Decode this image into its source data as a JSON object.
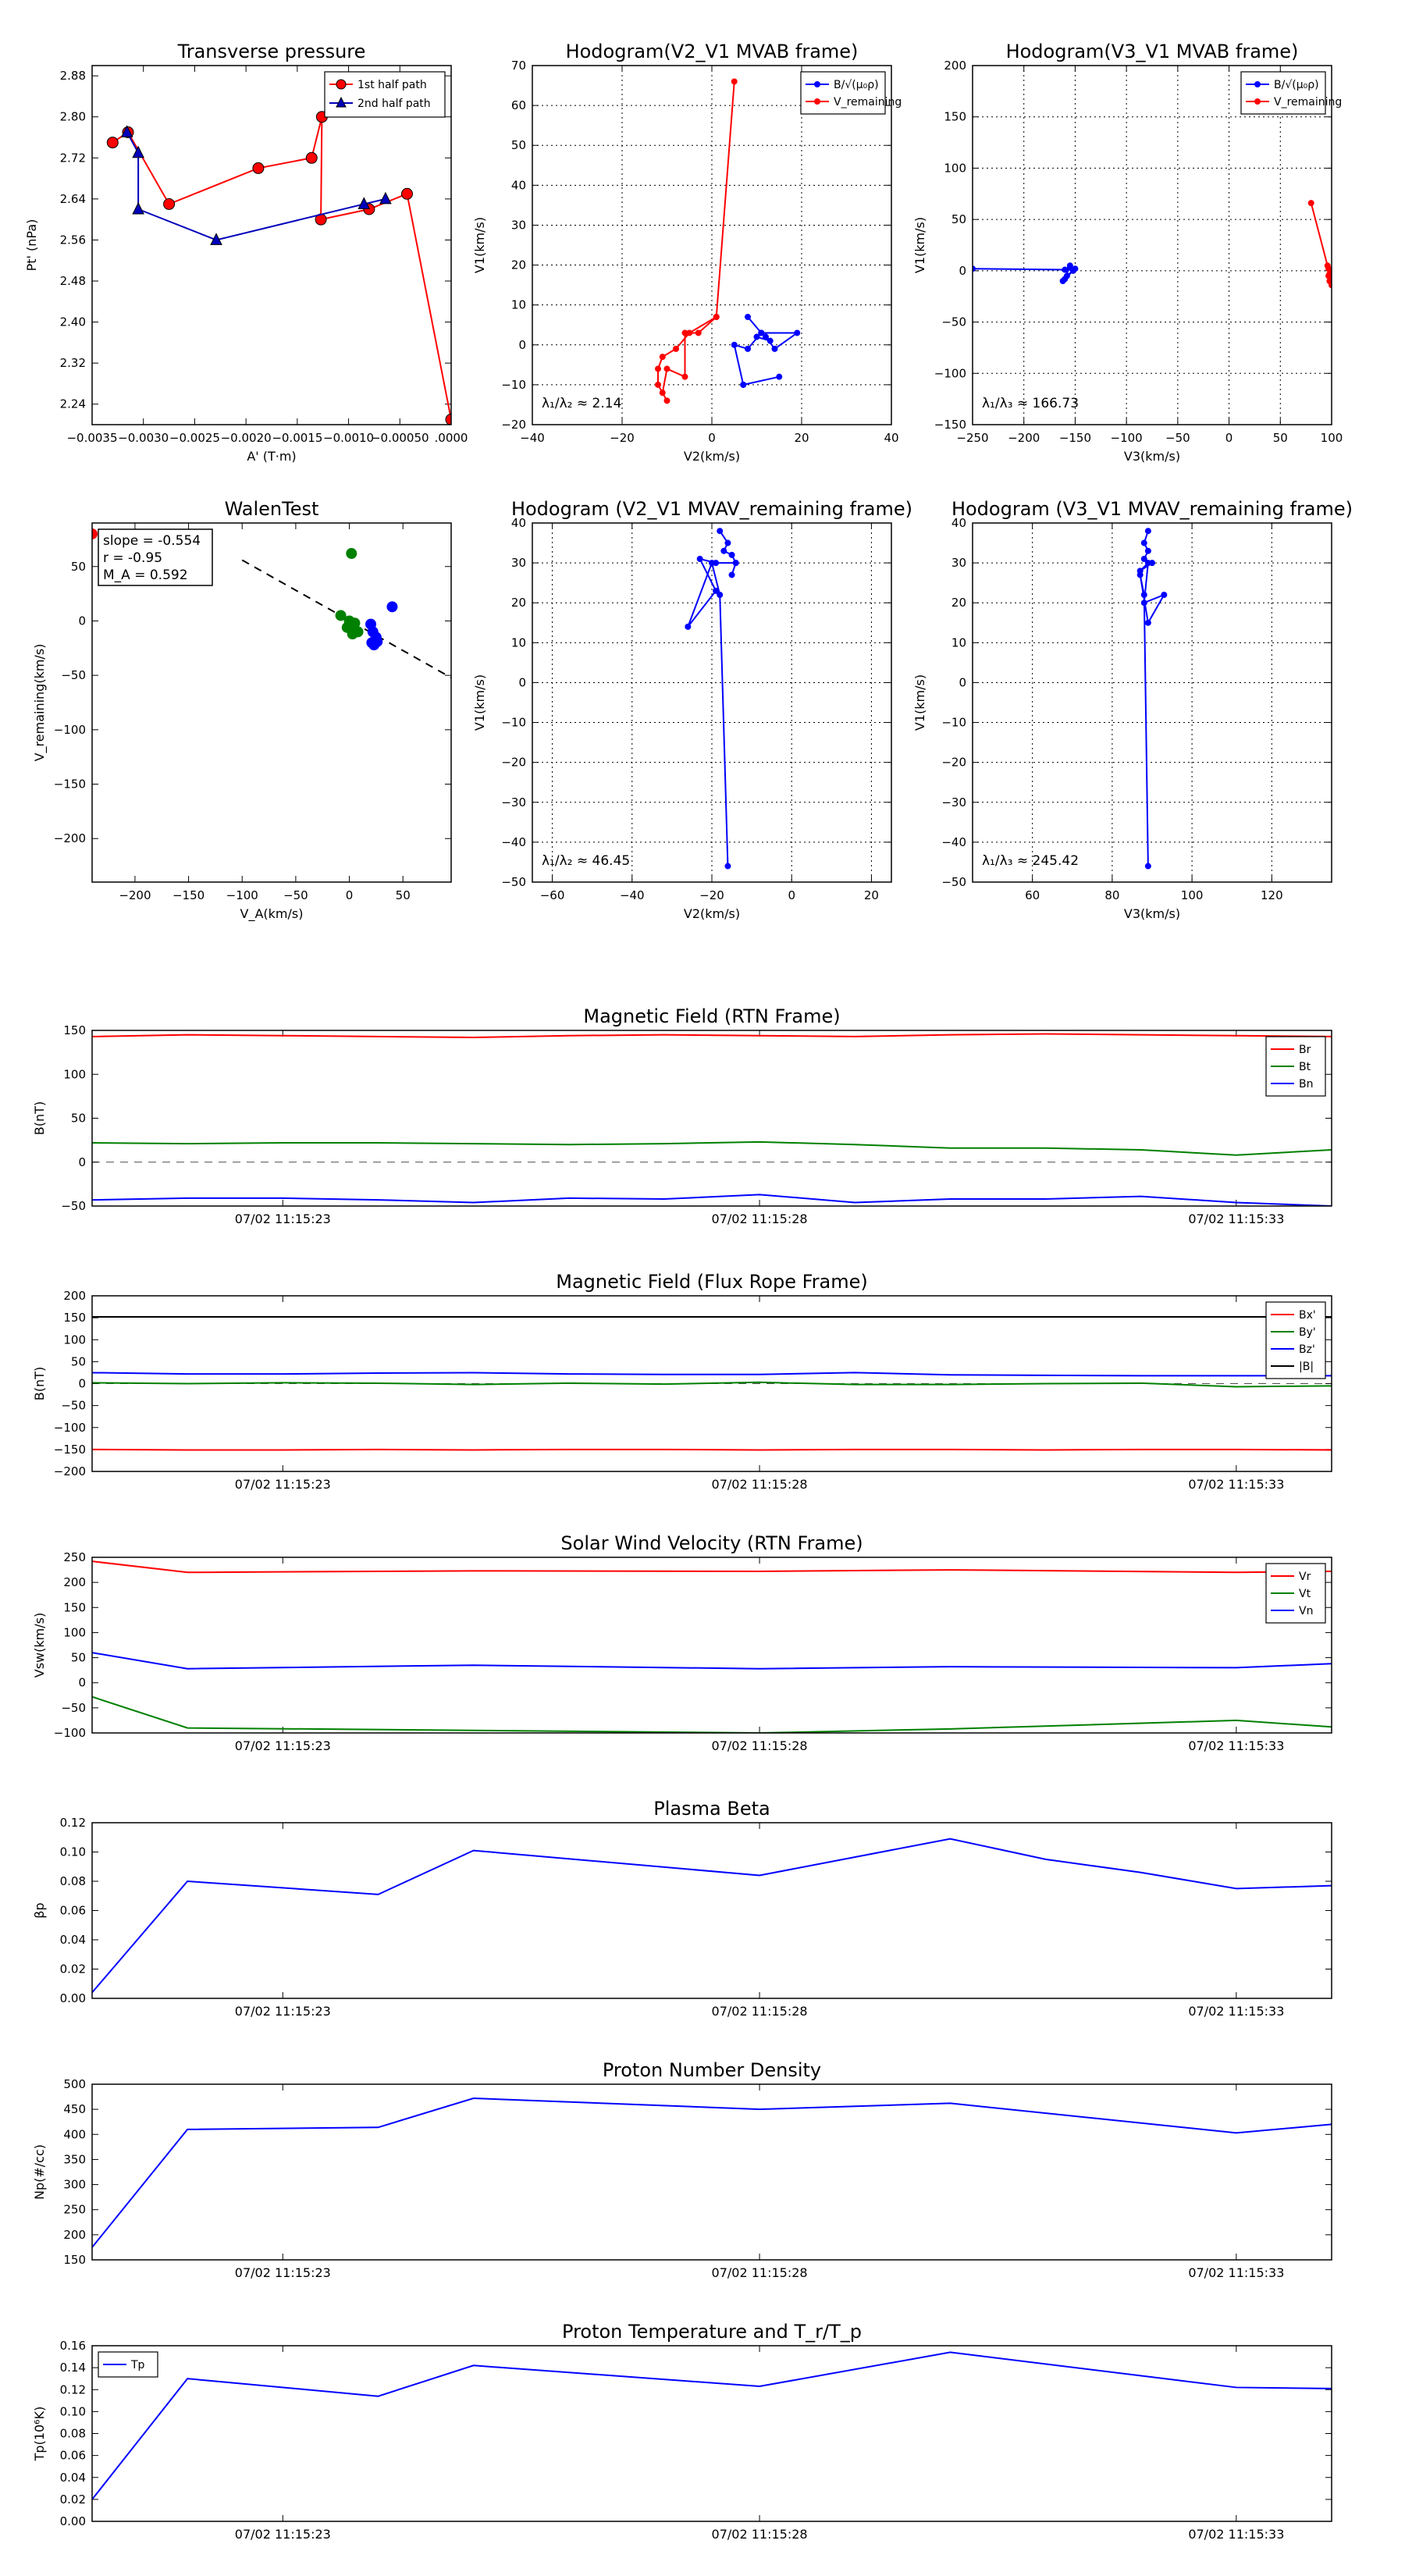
{
  "chart_data": [
    {
      "id": "tp",
      "type": "scatter",
      "title": "Transverse pressure",
      "xlabel": "A' (T·m)",
      "ylabel": "Pt' (nPa)",
      "xlim": [
        -0.0035,
        0.0
      ],
      "ylim": [
        2.2,
        2.9
      ],
      "xticks": [
        -0.0035,
        -0.003,
        -0.0025,
        -0.002,
        -0.0015,
        -0.001,
        -0.0005,
        0.0
      ],
      "xticklabels": [
        "−0.0035",
        "−0.0030",
        "−0.0025",
        "−0.0020",
        "−0.0015",
        "−0.0010",
        "−0.00050",
        ".0000"
      ],
      "yticks": [
        2.24,
        2.32,
        2.4,
        2.48,
        2.56,
        2.64,
        2.72,
        2.8,
        2.88
      ],
      "yticklabels": [
        "2.24",
        "2.32",
        "2.40",
        "2.48",
        "2.56",
        "2.64",
        "2.72",
        "2.80",
        "2.88"
      ],
      "legend": [
        "1st half path",
        "2nd half path"
      ],
      "series": [
        {
          "name": "1st half path",
          "color": "#ff0000",
          "marker": "circle",
          "x": [
            -0.0033,
            -0.00315,
            -0.00275,
            -0.00188,
            -0.00136,
            -0.00126,
            -0.00127,
            -0.0008,
            -0.00043,
            0.0
          ],
          "y": [
            2.75,
            2.77,
            2.63,
            2.7,
            2.72,
            2.8,
            2.6,
            2.62,
            2.65,
            2.21
          ]
        },
        {
          "name": "2nd half path",
          "color": "#0000bb",
          "marker": "triangle",
          "x": [
            -0.00316,
            -0.00305,
            -0.00305,
            -0.00229,
            -0.00085,
            -0.00064
          ],
          "y": [
            2.77,
            2.73,
            2.62,
            2.56,
            2.63,
            2.64
          ]
        }
      ]
    },
    {
      "id": "hodo1",
      "type": "line",
      "title": "Hodogram(V2_V1 MVAB frame)",
      "xlabel": "V2(km/s)",
      "ylabel": "V1(km/s)",
      "xlim": [
        -40,
        40
      ],
      "ylim": [
        -20,
        70
      ],
      "xticks": [
        -40,
        -20,
        0,
        20,
        40
      ],
      "yticks": [
        -20,
        -10,
        0,
        10,
        20,
        30,
        40,
        50,
        60,
        70
      ],
      "legend": [
        "B/√(μ₀ρ)",
        "V_remaining"
      ],
      "annotation": "λ₁/λ₂ ≈ 2.14",
      "series": [
        {
          "name": "B/√(μ₀ρ)",
          "color": "#0000ff",
          "x": [
            8,
            11,
            10,
            13,
            12,
            14,
            19,
            11,
            8,
            5,
            7,
            15,
            7
          ],
          "y": [
            7,
            3,
            2,
            1,
            2,
            -1,
            3,
            3,
            -1,
            0,
            -10,
            -8,
            -10
          ]
        },
        {
          "name": "V_remaining",
          "color": "#ff0000",
          "x": [
            5,
            1,
            -5,
            -8,
            -11,
            -12,
            -12,
            -10,
            -11,
            -10,
            -6,
            -6,
            -3,
            1
          ],
          "y": [
            66,
            7,
            3,
            -1,
            -3,
            -6,
            -10,
            -14,
            -12,
            -6,
            -8,
            3,
            3,
            7
          ]
        }
      ]
    },
    {
      "id": "hodo2",
      "type": "line",
      "title": "Hodogram(V3_V1 MVAB frame)",
      "xlabel": "V3(km/s)",
      "ylabel": "V1(km/s)",
      "xlim": [
        -250,
        100
      ],
      "ylim": [
        -150,
        200
      ],
      "xticks": [
        -250,
        -200,
        -150,
        -100,
        -50,
        0,
        50,
        100
      ],
      "yticks": [
        -150,
        -100,
        -50,
        0,
        50,
        100,
        150,
        200
      ],
      "legend": [
        "B/√(μ₀ρ)",
        "V_remaining"
      ],
      "annotation": "λ₁/λ₃ ≈ 166.73",
      "series": [
        {
          "name": "B/√(μ₀ρ)",
          "color": "#0000ff",
          "x": [
            -250,
            -160,
            -155,
            -152,
            -158,
            -150,
            -162,
            -160,
            -155
          ],
          "y": [
            2,
            1,
            3,
            0,
            -5,
            2,
            -10,
            -8,
            5
          ]
        },
        {
          "name": "V_remaining",
          "color": "#ff0000",
          "x": [
            80,
            96,
            98,
            97,
            99,
            98,
            100,
            99,
            97
          ],
          "y": [
            66,
            5,
            -3,
            2,
            -8,
            -10,
            -14,
            0,
            -5
          ]
        }
      ]
    },
    {
      "id": "walen",
      "type": "scatter",
      "title": "WalenTest",
      "xlabel": "V_A(km/s)",
      "ylabel": "V_remaining(km/s)",
      "xlim": [
        -240,
        95
      ],
      "ylim": [
        -240,
        90
      ],
      "xticks": [
        -200,
        -150,
        -100,
        -50,
        0,
        50
      ],
      "yticks": [
        -200,
        -150,
        -100,
        -50,
        0,
        50
      ],
      "textbox": [
        "slope = -0.554",
        "r = -0.95",
        "M_A = 0.592"
      ],
      "fit": {
        "slope": -0.554,
        "intercept": 0.5
      },
      "series": [
        {
          "name": "early",
          "color": "#ff0000",
          "x": [
            -240,
            -160,
            -150,
            -155
          ],
          "y": [
            80,
            95,
            95,
            95
          ]
        },
        {
          "name": "middle",
          "color": "#008000",
          "x": [
            2,
            -8,
            0,
            5,
            -2,
            4,
            8,
            0,
            3
          ],
          "y": [
            62,
            5,
            0,
            -2,
            -6,
            -8,
            -10,
            -5,
            -12
          ]
        },
        {
          "name": "late",
          "color": "#0000ff",
          "x": [
            40,
            20,
            22,
            25,
            24,
            21,
            23,
            26
          ],
          "y": [
            13,
            -3,
            -10,
            -15,
            -18,
            -20,
            -22,
            -19
          ]
        }
      ]
    },
    {
      "id": "hodo3",
      "type": "line",
      "title": "Hodogram (V2_V1 MVAV_remaining frame)",
      "xlabel": "V2(km/s)",
      "ylabel": "V1(km/s)",
      "xlim": [
        -65,
        25
      ],
      "ylim": [
        -50,
        40
      ],
      "xticks": [
        -60,
        -40,
        -20,
        0,
        20
      ],
      "yticks": [
        -50,
        -40,
        -30,
        -20,
        -10,
        0,
        10,
        20,
        30,
        40
      ],
      "annotation": "λ₁/λ₂ ≈ 46.45",
      "series": [
        {
          "name": "V",
          "color": "#0000ff",
          "x": [
            -18,
            -16,
            -17,
            -15,
            -14,
            -15,
            -14,
            -19,
            -23,
            -19,
            -26,
            -20,
            -18,
            -16
          ],
          "y": [
            38,
            35,
            33,
            32,
            30,
            27,
            30,
            30,
            31,
            23,
            14,
            30,
            22,
            -46
          ]
        }
      ]
    },
    {
      "id": "hodo4",
      "type": "line",
      "title": "Hodogram (V3_V1 MVAV_remaining frame)",
      "xlabel": "V3(km/s)",
      "ylabel": "V1(km/s)",
      "xlim": [
        45,
        135
      ],
      "ylim": [
        -50,
        40
      ],
      "xticks": [
        60,
        80,
        100,
        120
      ],
      "yticks": [
        -50,
        -40,
        -30,
        -20,
        -10,
        0,
        10,
        20,
        30,
        40
      ],
      "annotation": "λ₁/λ₃ ≈ 245.42",
      "series": [
        {
          "name": "V",
          "color": "#0000ff",
          "x": [
            89,
            88,
            89,
            88,
            90,
            87,
            89,
            88,
            93,
            89,
            87,
            88,
            89
          ],
          "y": [
            38,
            35,
            33,
            31,
            30,
            28,
            30,
            20,
            22,
            15,
            27,
            22,
            -46
          ]
        }
      ]
    },
    {
      "id": "mfrtn",
      "type": "line",
      "title": "Magnetic Field (RTN Frame)",
      "ylabel": "B(nT)",
      "xlim": [
        0,
        13
      ],
      "ylim": [
        -50,
        150
      ],
      "yticks": [
        -50,
        0,
        50,
        100,
        150
      ],
      "xticks": [
        2,
        7,
        12
      ],
      "xticklabels": [
        "07/02 11:15:23",
        "07/02 11:15:28",
        "07/02 11:15:33"
      ],
      "legend": [
        "Br",
        "Bt",
        "Bn"
      ],
      "zeroline": true,
      "x": [
        0,
        1,
        2,
        3,
        4,
        5,
        6,
        7,
        8,
        9,
        10,
        11,
        12,
        13
      ],
      "series": [
        {
          "name": "Br",
          "color": "#ff0000",
          "values": [
            143,
            145,
            144,
            143,
            142,
            144,
            145,
            144,
            143,
            145,
            146,
            145,
            144,
            143
          ]
        },
        {
          "name": "Bt",
          "color": "#008000",
          "values": [
            22,
            21,
            22,
            22,
            21,
            20,
            21,
            23,
            20,
            16,
            16,
            14,
            8,
            14
          ]
        },
        {
          "name": "Bn",
          "color": "#0000ff",
          "values": [
            -43,
            -41,
            -41,
            -43,
            -46,
            -41,
            -42,
            -37,
            -46,
            -42,
            -42,
            -39,
            -46,
            -50
          ]
        }
      ]
    },
    {
      "id": "mffr",
      "type": "line",
      "title": "Magnetic Field (Flux Rope Frame)",
      "ylabel": "B(nT)",
      "xlim": [
        0,
        13
      ],
      "ylim": [
        -200,
        200
      ],
      "yticks": [
        -200,
        -150,
        -100,
        -50,
        0,
        50,
        100,
        150,
        200
      ],
      "xticks": [
        2,
        7,
        12
      ],
      "xticklabels": [
        "07/02 11:15:23",
        "07/02 11:15:28",
        "07/02 11:15:33"
      ],
      "legend": [
        "Bx'",
        "By'",
        "Bz'",
        "|B|"
      ],
      "zeroline": true,
      "x": [
        0,
        1,
        2,
        3,
        4,
        5,
        6,
        7,
        8,
        9,
        10,
        11,
        12,
        13
      ],
      "series": [
        {
          "name": "Bx'",
          "color": "#ff0000",
          "values": [
            -150,
            -151,
            -151,
            -150,
            -151,
            -150,
            -150,
            -151,
            -150,
            -150,
            -151,
            -150,
            -150,
            -151
          ]
        },
        {
          "name": "By'",
          "color": "#008000",
          "values": [
            2,
            0,
            2,
            1,
            -2,
            1,
            -1,
            3,
            -2,
            -2,
            0,
            1,
            -7,
            -5
          ]
        },
        {
          "name": "Bz'",
          "color": "#0000ff",
          "values": [
            25,
            22,
            22,
            24,
            25,
            22,
            21,
            21,
            25,
            20,
            19,
            18,
            18,
            18
          ]
        },
        {
          "name": "|B|",
          "color": "#000000",
          "values": [
            152,
            152,
            152,
            152,
            152,
            152,
            152,
            152,
            152,
            152,
            152,
            152,
            152,
            152
          ]
        }
      ]
    },
    {
      "id": "sw",
      "type": "line",
      "title": "Solar Wind Velocity (RTN Frame)",
      "ylabel": "Vsw(km/s)",
      "xlim": [
        0,
        13
      ],
      "ylim": [
        -100,
        250
      ],
      "yticks": [
        -100,
        -50,
        0,
        50,
        100,
        150,
        200,
        250
      ],
      "xticks": [
        2,
        7,
        12
      ],
      "xticklabels": [
        "07/02 11:15:23",
        "07/02 11:15:28",
        "07/02 11:15:33"
      ],
      "legend": [
        "Vr",
        "Vt",
        "Vn"
      ],
      "x": [
        0,
        1,
        4,
        7,
        9,
        12,
        13
      ],
      "series": [
        {
          "name": "Vr",
          "color": "#ff0000",
          "values": [
            242,
            220,
            223,
            222,
            225,
            220,
            222
          ]
        },
        {
          "name": "Vt",
          "color": "#008000",
          "values": [
            -28,
            -90,
            -95,
            -100,
            -92,
            -75,
            -88
          ]
        },
        {
          "name": "Vn",
          "color": "#0000ff",
          "values": [
            60,
            28,
            35,
            28,
            32,
            30,
            38
          ]
        }
      ]
    },
    {
      "id": "beta",
      "type": "line",
      "title": "Plasma Beta",
      "ylabel": "βp",
      "xlim": [
        0,
        13
      ],
      "ylim": [
        0,
        0.12
      ],
      "yticks": [
        0,
        0.02,
        0.04,
        0.06,
        0.08,
        0.1,
        0.12
      ],
      "yticklabels": [
        "0.00",
        "0.02",
        "0.04",
        "0.06",
        "0.08",
        "0.10",
        "0.12"
      ],
      "xticks": [
        2,
        7,
        12
      ],
      "xticklabels": [
        "07/02 11:15:23",
        "07/02 11:15:28",
        "07/02 11:15:33"
      ],
      "x": [
        0,
        1,
        3,
        4,
        7,
        9,
        10,
        11,
        12,
        13
      ],
      "series": [
        {
          "name": "beta",
          "color": "#0000ff",
          "values": [
            0.004,
            0.08,
            0.071,
            0.101,
            0.084,
            0.109,
            0.095,
            0.086,
            0.075,
            0.077
          ]
        }
      ]
    },
    {
      "id": "np",
      "type": "line",
      "title": "Proton Number Density",
      "ylabel": "Np(#/cc)",
      "xlim": [
        0,
        13
      ],
      "ylim": [
        150,
        500
      ],
      "yticks": [
        150,
        200,
        250,
        300,
        350,
        400,
        450,
        500
      ],
      "xticks": [
        2,
        7,
        12
      ],
      "xticklabels": [
        "07/02 11:15:23",
        "07/02 11:15:28",
        "07/02 11:15:33"
      ],
      "x": [
        0,
        1,
        3,
        4,
        7,
        9,
        12,
        13
      ],
      "series": [
        {
          "name": "Np",
          "color": "#0000ff",
          "values": [
            175,
            410,
            414,
            472,
            450,
            462,
            403,
            420
          ]
        }
      ]
    },
    {
      "id": "tpt",
      "type": "line",
      "title": "Proton Temperature and T_r/T_p",
      "ylabel": "Tp(10⁶K)",
      "xlim": [
        0,
        13
      ],
      "ylim": [
        0,
        0.16
      ],
      "yticks": [
        0,
        0.02,
        0.04,
        0.06,
        0.08,
        0.1,
        0.12,
        0.14,
        0.16
      ],
      "yticklabels": [
        "0.00",
        "0.02",
        "0.04",
        "0.06",
        "0.08",
        "0.10",
        "0.12",
        "0.14",
        "0.16"
      ],
      "xticks": [
        2,
        7,
        12
      ],
      "xticklabels": [
        "07/02 11:15:23",
        "07/02 11:15:28",
        "07/02 11:15:33"
      ],
      "legend": [
        "Tp"
      ],
      "x": [
        0,
        1,
        3,
        4,
        7,
        9,
        12,
        13
      ],
      "series": [
        {
          "name": "Tp",
          "color": "#0000ff",
          "values": [
            0.02,
            0.13,
            0.114,
            0.142,
            0.123,
            0.154,
            0.122,
            0.121
          ]
        }
      ]
    }
  ]
}
